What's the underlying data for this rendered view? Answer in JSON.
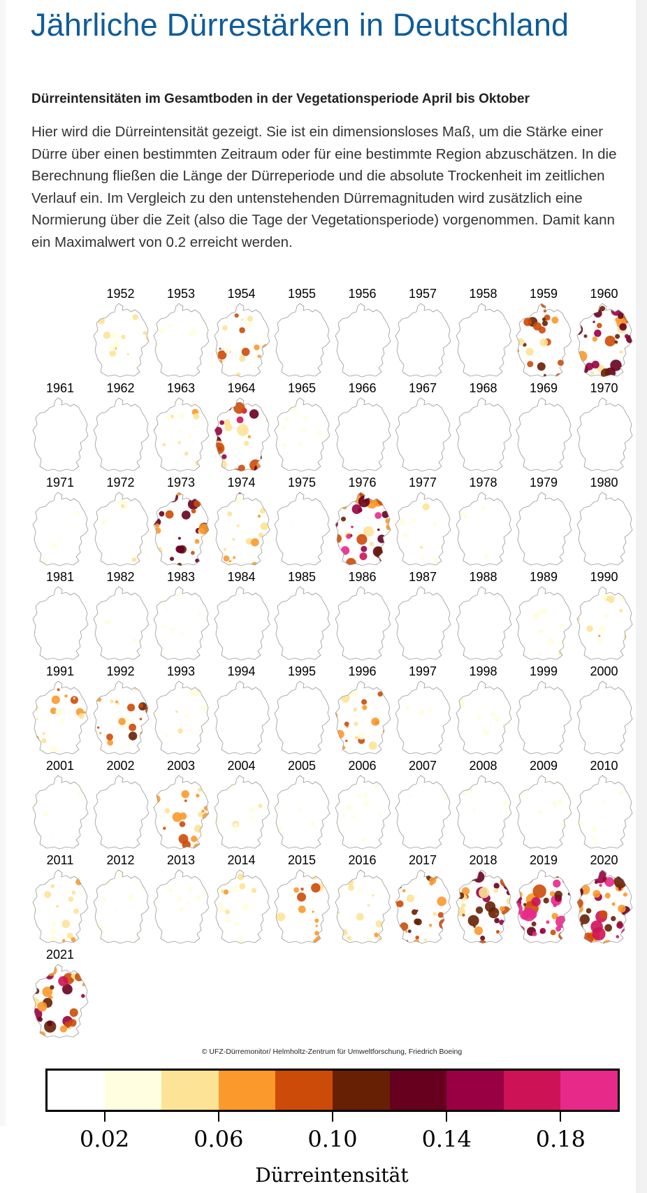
{
  "page": {
    "title": "Jährliche Dürrestärken in Deutschland",
    "subtitle": "Dürreintensitäten im Gesamtboden in der Vegetationsperiode April bis Oktober",
    "description": "Hier wird die Dürreintensität gezeigt. Sie ist ein dimensionsloses Maß, um die Stärke einer Dürre über einen bestimmten Zeitraum oder für eine bestimmte Region abzuschätzen. In die Berechnung fließen die Länge der Dürreperiode und die absolute Trockenheit im zeitlichen Verlauf ein. Im Vergleich zu den untenstehenden Dürremagnituden wird zusätzlich eine Normierung über die Zeit (also die Tage der Vegetationsperiode) vorgenommen. Damit kann ein Maximalwert von 0.2 erreicht werden."
  },
  "figure": {
    "credit": "© UFZ-Dürremonitor/ Helmholtz-Zentrum für Umweltforschung, Friedrich Boeing",
    "years": [
      {
        "year": "1952",
        "level": 0.05
      },
      {
        "year": "1953",
        "level": 0.03
      },
      {
        "year": "1954",
        "level": 0.08
      },
      {
        "year": "1955",
        "level": 0.0
      },
      {
        "year": "1956",
        "level": 0.0
      },
      {
        "year": "1957",
        "level": 0.0
      },
      {
        "year": "1958",
        "level": 0.0
      },
      {
        "year": "1959",
        "level": 0.09
      },
      {
        "year": "1960",
        "level": 0.12
      },
      {
        "year": "1961",
        "level": 0.0
      },
      {
        "year": "1962",
        "level": 0.0
      },
      {
        "year": "1963",
        "level": 0.05
      },
      {
        "year": "1964",
        "level": 0.13
      },
      {
        "year": "1965",
        "level": 0.01
      },
      {
        "year": "1966",
        "level": 0.0
      },
      {
        "year": "1967",
        "level": 0.0
      },
      {
        "year": "1968",
        "level": 0.0
      },
      {
        "year": "1969",
        "level": 0.0
      },
      {
        "year": "1970",
        "level": 0.0
      },
      {
        "year": "1971",
        "level": 0.02
      },
      {
        "year": "1972",
        "level": 0.04
      },
      {
        "year": "1973",
        "level": 0.11
      },
      {
        "year": "1974",
        "level": 0.07
      },
      {
        "year": "1975",
        "level": 0.01
      },
      {
        "year": "1976",
        "level": 0.15
      },
      {
        "year": "1977",
        "level": 0.04
      },
      {
        "year": "1978",
        "level": 0.01
      },
      {
        "year": "1979",
        "level": 0.0
      },
      {
        "year": "1980",
        "level": 0.0
      },
      {
        "year": "1981",
        "level": 0.0
      },
      {
        "year": "1982",
        "level": 0.01
      },
      {
        "year": "1983",
        "level": 0.01
      },
      {
        "year": "1984",
        "level": 0.0
      },
      {
        "year": "1985",
        "level": 0.0
      },
      {
        "year": "1986",
        "level": 0.0
      },
      {
        "year": "1987",
        "level": 0.0
      },
      {
        "year": "1988",
        "level": 0.0
      },
      {
        "year": "1989",
        "level": 0.04
      },
      {
        "year": "1990",
        "level": 0.05
      },
      {
        "year": "1991",
        "level": 0.07
      },
      {
        "year": "1992",
        "level": 0.09
      },
      {
        "year": "1993",
        "level": 0.04
      },
      {
        "year": "1994",
        "level": 0.0
      },
      {
        "year": "1995",
        "level": 0.0
      },
      {
        "year": "1996",
        "level": 0.08
      },
      {
        "year": "1997",
        "level": 0.02
      },
      {
        "year": "1998",
        "level": 0.03
      },
      {
        "year": "1999",
        "level": 0.0
      },
      {
        "year": "2000",
        "level": 0.0
      },
      {
        "year": "2001",
        "level": 0.01
      },
      {
        "year": "2002",
        "level": 0.0
      },
      {
        "year": "2003",
        "level": 0.09
      },
      {
        "year": "2004",
        "level": 0.04
      },
      {
        "year": "2005",
        "level": 0.01
      },
      {
        "year": "2006",
        "level": 0.03
      },
      {
        "year": "2007",
        "level": 0.01
      },
      {
        "year": "2008",
        "level": 0.01
      },
      {
        "year": "2009",
        "level": 0.03
      },
      {
        "year": "2010",
        "level": 0.01
      },
      {
        "year": "2011",
        "level": 0.06
      },
      {
        "year": "2012",
        "level": 0.03
      },
      {
        "year": "2013",
        "level": 0.01
      },
      {
        "year": "2014",
        "level": 0.05
      },
      {
        "year": "2015",
        "level": 0.08
      },
      {
        "year": "2016",
        "level": 0.05
      },
      {
        "year": "2017",
        "level": 0.1
      },
      {
        "year": "2018",
        "level": 0.12
      },
      {
        "year": "2019",
        "level": 0.17
      },
      {
        "year": "2020",
        "level": 0.16
      },
      {
        "year": "2021",
        "level": 0.13
      }
    ]
  },
  "colorbar": {
    "title": "Dürreintensität",
    "colors": [
      "#ffffff",
      "#fffee0",
      "#fde396",
      "#fb992c",
      "#cc4b08",
      "#672004",
      "#67001f",
      "#980043",
      "#ce1256",
      "#e7298a"
    ],
    "bounds": [
      0.0,
      0.2
    ],
    "tick_labels": [
      "0.02",
      "0.06",
      "0.10",
      "0.14",
      "0.18"
    ],
    "tick_values": [
      0.02,
      0.06,
      0.1,
      0.14,
      0.18
    ]
  }
}
